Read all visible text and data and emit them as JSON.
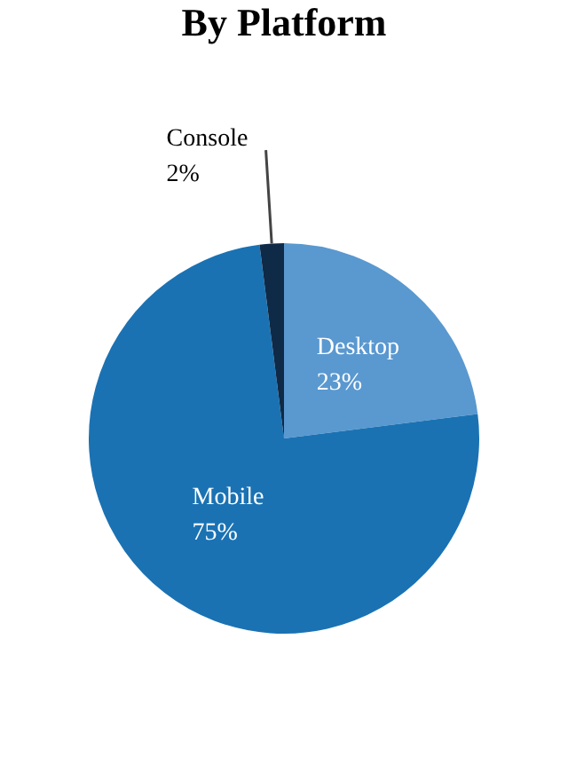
{
  "chart_data": {
    "type": "pie",
    "title": "By Platform",
    "categories": [
      "Desktop",
      "Mobile",
      "Console"
    ],
    "values": [
      23,
      75,
      2
    ],
    "value_labels": [
      "23%",
      "75%",
      "2%"
    ],
    "colors": [
      "#5a98d0",
      "#1a72b3",
      "#0e2a47"
    ],
    "legend": false
  }
}
